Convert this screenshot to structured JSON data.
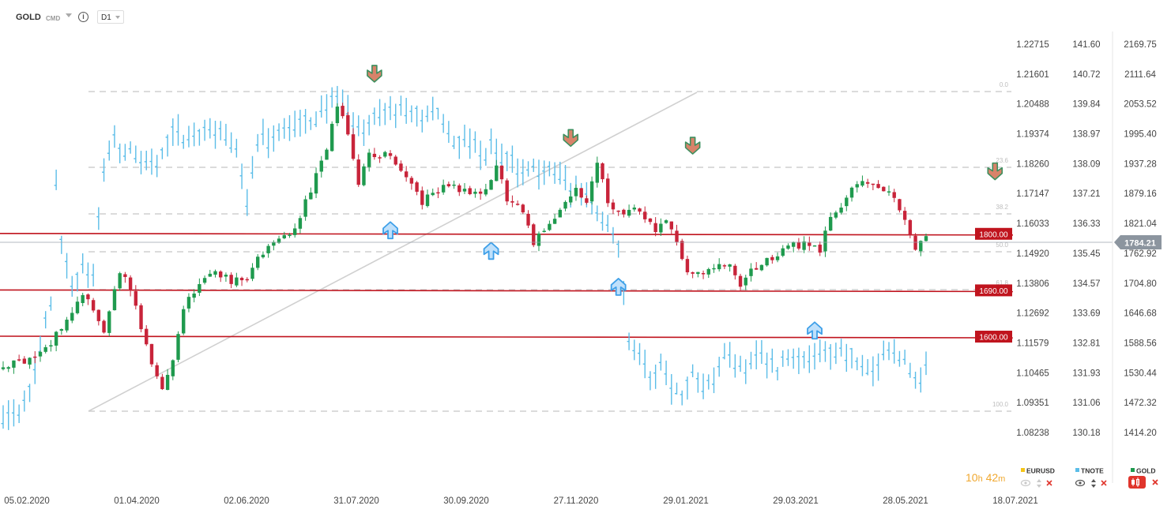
{
  "header": {
    "symbol": "GOLD",
    "asset_class": "CMD",
    "info_glyph": "i",
    "timeframe": "D1"
  },
  "timer": {
    "hours": "10",
    "hours_unit": "h",
    "minutes": "42",
    "minutes_unit": "m",
    "color": "#f0a830"
  },
  "colors": {
    "bull": "#1f9a4e",
    "bear": "#c8243a",
    "overlay": "#5bbde8",
    "level": "#c0141e",
    "grid": "#cccccc"
  },
  "chart_data": {
    "type": "candlestick",
    "main_symbol": "GOLD",
    "overlay_symbol": "TNOTE",
    "x": [
      "05.02.2020",
      "01.04.2020",
      "02.06.2020",
      "31.07.2020",
      "30.09.2020",
      "27.11.2020",
      "29.01.2021",
      "29.03.2021",
      "28.05.2021",
      "18.07.2021"
    ],
    "price_axis_gold": [
      "2169.75",
      "2111.64",
      "2053.52",
      "1995.40",
      "1937.28",
      "1879.16",
      "1821.04",
      "1762.92",
      "1704.80",
      "1646.68",
      "1588.56",
      "1530.44",
      "1472.32",
      "1414.20"
    ],
    "price_axis_tnote": [
      "141.60",
      "140.72",
      "139.84",
      "138.97",
      "138.09",
      "137.21",
      "136.33",
      "135.45",
      "134.57",
      "133.69",
      "132.81",
      "131.93",
      "131.06",
      "130.18"
    ],
    "price_axis_eurusd": [
      "1.22715",
      "1.21601",
      "1.20488",
      "1.19374",
      "1.18260",
      "1.17147",
      "1.16033",
      "1.14920",
      "1.13806",
      "1.12692",
      "1.11579",
      "1.10465",
      "1.09351",
      "1.08238"
    ],
    "last_price": "1784.21",
    "horizontal_levels": [
      "1800.00",
      "1690.00",
      "1600.00"
    ],
    "fib_levels": [
      "0.0",
      "23.6",
      "38.2",
      "50.0",
      "61.8",
      "100.0"
    ],
    "gold_path": [
      [
        0,
        1540
      ],
      [
        6,
        1565
      ],
      [
        9,
        1585
      ],
      [
        12,
        1640
      ],
      [
        15,
        1680
      ],
      [
        17,
        1650
      ],
      [
        19,
        1600
      ],
      [
        22,
        1730
      ],
      [
        24,
        1690
      ],
      [
        26,
        1615
      ],
      [
        28,
        1545
      ],
      [
        30,
        1500
      ],
      [
        32,
        1560
      ],
      [
        34,
        1660
      ],
      [
        37,
        1700
      ],
      [
        40,
        1730
      ],
      [
        43,
        1710
      ],
      [
        46,
        1720
      ],
      [
        49,
        1765
      ],
      [
        51,
        1780
      ],
      [
        53,
        1795
      ],
      [
        56,
        1830
      ],
      [
        58,
        1890
      ],
      [
        61,
        1965
      ],
      [
        63,
        2050
      ],
      [
        65,
        2000
      ],
      [
        67,
        1905
      ],
      [
        69,
        1950
      ],
      [
        72,
        1960
      ],
      [
        74,
        1930
      ],
      [
        77,
        1900
      ],
      [
        79,
        1865
      ],
      [
        81,
        1875
      ],
      [
        84,
        1900
      ],
      [
        86,
        1890
      ],
      [
        89,
        1885
      ],
      [
        91,
        1880
      ],
      [
        93,
        1935
      ],
      [
        95,
        1870
      ],
      [
        98,
        1850
      ],
      [
        100,
        1780
      ],
      [
        102,
        1810
      ],
      [
        104,
        1835
      ],
      [
        106,
        1860
      ],
      [
        108,
        1885
      ],
      [
        110,
        1860
      ],
      [
        112,
        1945
      ],
      [
        114,
        1865
      ],
      [
        117,
        1840
      ],
      [
        119,
        1850
      ],
      [
        121,
        1835
      ],
      [
        123,
        1800
      ],
      [
        125,
        1830
      ],
      [
        127,
        1780
      ],
      [
        129,
        1725
      ],
      [
        131,
        1720
      ],
      [
        134,
        1735
      ],
      [
        137,
        1740
      ],
      [
        139,
        1690
      ],
      [
        141,
        1730
      ],
      [
        144,
        1745
      ],
      [
        147,
        1770
      ],
      [
        149,
        1778
      ],
      [
        152,
        1785
      ],
      [
        154,
        1770
      ],
      [
        156,
        1840
      ],
      [
        159,
        1870
      ],
      [
        161,
        1895
      ],
      [
        164,
        1905
      ],
      [
        166,
        1890
      ],
      [
        168,
        1870
      ],
      [
        170,
        1835
      ],
      [
        172,
        1772
      ],
      [
        174,
        1790
      ]
    ],
    "tnote_path": [
      [
        0,
        130.7
      ],
      [
        3,
        130.95
      ],
      [
        5,
        131.5
      ],
      [
        7,
        132.8
      ],
      [
        9,
        133.8
      ],
      [
        10,
        137.6
      ],
      [
        11,
        135.9
      ],
      [
        13,
        134.3
      ],
      [
        15,
        135.1
      ],
      [
        17,
        134.9
      ],
      [
        19,
        137.9
      ],
      [
        21,
        138.7
      ],
      [
        23,
        138.5
      ],
      [
        26,
        138.2
      ],
      [
        29,
        138.0
      ],
      [
        32,
        138.95
      ],
      [
        35,
        138.75
      ],
      [
        38,
        139.2
      ],
      [
        40,
        138.9
      ],
      [
        42,
        138.8
      ],
      [
        44,
        138.5
      ],
      [
        46,
        137.0
      ],
      [
        48,
        138.7
      ],
      [
        50,
        138.8
      ],
      [
        53,
        139.1
      ],
      [
        56,
        139.15
      ],
      [
        58,
        139.35
      ],
      [
        60,
        139.6
      ],
      [
        62,
        140.0
      ],
      [
        64,
        139.8
      ],
      [
        66,
        139.2
      ],
      [
        68,
        139.0
      ],
      [
        70,
        139.6
      ],
      [
        73,
        139.5
      ],
      [
        76,
        139.6
      ],
      [
        79,
        139.55
      ],
      [
        82,
        139.5
      ],
      [
        84,
        139.0
      ],
      [
        86,
        138.65
      ],
      [
        88,
        138.8
      ],
      [
        90,
        138.2
      ],
      [
        92,
        138.7
      ],
      [
        94,
        138.3
      ],
      [
        96,
        138.1
      ],
      [
        98,
        137.9
      ],
      [
        100,
        137.95
      ],
      [
        102,
        137.85
      ],
      [
        104,
        137.9
      ],
      [
        106,
        137.4
      ],
      [
        108,
        137.3
      ],
      [
        110,
        137.1
      ],
      [
        112,
        136.6
      ],
      [
        114,
        136.3
      ],
      [
        116,
        135.8
      ],
      [
        117,
        134.3
      ],
      [
        118,
        133.0
      ],
      [
        120,
        132.6
      ],
      [
        122,
        131.6
      ],
      [
        124,
        132.3
      ],
      [
        126,
        131.6
      ],
      [
        128,
        131.2
      ],
      [
        130,
        132.0
      ],
      [
        132,
        131.6
      ],
      [
        134,
        131.9
      ],
      [
        136,
        132.4
      ],
      [
        138,
        132.3
      ],
      [
        140,
        132.1
      ],
      [
        142,
        132.6
      ],
      [
        144,
        132.3
      ],
      [
        146,
        132.0
      ],
      [
        148,
        132.5
      ],
      [
        150,
        132.35
      ],
      [
        152,
        132.25
      ],
      [
        154,
        132.5
      ],
      [
        156,
        132.6
      ],
      [
        158,
        132.5
      ],
      [
        160,
        132.4
      ],
      [
        162,
        131.9
      ],
      [
        164,
        131.9
      ],
      [
        166,
        132.5
      ],
      [
        168,
        132.7
      ],
      [
        170,
        132.3
      ],
      [
        172,
        131.6
      ],
      [
        174,
        131.95
      ]
    ],
    "legend": [
      {
        "name": "EURUSD",
        "color": "#f5c518"
      },
      {
        "name": "TNOTE",
        "color": "#5bbde8"
      },
      {
        "name": "GOLD",
        "color": "#1f9a4e"
      }
    ],
    "signals": [
      {
        "type": "down",
        "x": 70,
        "y": 2110,
        "color": "#3d8f5e"
      },
      {
        "type": "down",
        "x": 107,
        "y": 1985,
        "color": "#3d8f5e"
      },
      {
        "type": "down",
        "x": 130,
        "y": 1970,
        "color": "#3d8f5e"
      },
      {
        "type": "down",
        "x": 187,
        "y": 1920,
        "color": "#3d8f5e"
      },
      {
        "type": "up",
        "x": 73,
        "y": 1810,
        "color": "#3d9fe8"
      },
      {
        "type": "up",
        "x": 92,
        "y": 1770,
        "color": "#3d9fe8"
      },
      {
        "type": "up",
        "x": 116,
        "y": 1700,
        "color": "#3d9fe8"
      },
      {
        "type": "up",
        "x": 153,
        "y": 1615,
        "color": "#3d9fe8"
      }
    ],
    "grid": false
  }
}
